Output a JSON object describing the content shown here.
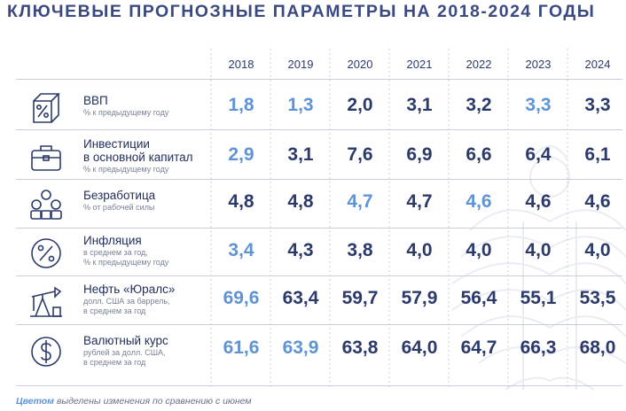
{
  "title": "КЛЮЧЕВЫЕ ПРОГНОЗНЫЕ ПАРАМЕТРЫ НА 2018-2024 ГОДЫ",
  "colors": {
    "primary": "#2b3a6b",
    "highlight": "#5f93d4",
    "muted": "#7a8096"
  },
  "years": [
    "2018",
    "2019",
    "2020",
    "2021",
    "2022",
    "2023",
    "2024"
  ],
  "rows": [
    {
      "icon": "percent-box-icon",
      "name": [
        "ВВП"
      ],
      "sub": [
        "% к предыдущему году"
      ],
      "values": [
        "1,8",
        "1,3",
        "2,0",
        "3,1",
        "3,2",
        "3,3",
        "3,3"
      ],
      "highlight": [
        true,
        true,
        false,
        false,
        false,
        true,
        false
      ]
    },
    {
      "icon": "briefcase-icon",
      "name": [
        "Инвестиции",
        "в основной капитал"
      ],
      "sub": [
        "% к предыдущему году"
      ],
      "values": [
        "2,9",
        "3,1",
        "7,6",
        "6,9",
        "6,6",
        "6,4",
        "6,1"
      ],
      "highlight": [
        true,
        false,
        false,
        false,
        false,
        false,
        false
      ]
    },
    {
      "icon": "people-icon",
      "name": [
        "Безработица"
      ],
      "sub": [
        "% от рабочей силы"
      ],
      "values": [
        "4,8",
        "4,8",
        "4,7",
        "4,7",
        "4,6",
        "4,6",
        "4,6"
      ],
      "highlight": [
        false,
        false,
        true,
        false,
        true,
        false,
        false
      ]
    },
    {
      "icon": "percent-circle-icon",
      "name": [
        "Инфляция"
      ],
      "sub": [
        "в среднем за год,",
        "% к предыдущему году"
      ],
      "values": [
        "3,4",
        "4,3",
        "3,8",
        "4,0",
        "4,0",
        "4,0",
        "4,0"
      ],
      "highlight": [
        true,
        false,
        false,
        false,
        false,
        false,
        false
      ]
    },
    {
      "icon": "oil-pump-icon",
      "name": [
        "Нефть «Юралс»"
      ],
      "sub": [
        "долл. США за баррель,",
        "в среднем за год"
      ],
      "values": [
        "69,6",
        "63,4",
        "59,7",
        "57,9",
        "56,4",
        "55,1",
        "53,5"
      ],
      "highlight": [
        true,
        false,
        false,
        false,
        false,
        false,
        false
      ]
    },
    {
      "icon": "dollar-coin-icon",
      "name": [
        "Валютный курс"
      ],
      "sub": [
        "рублей за долл. США,",
        "в среднем за год"
      ],
      "values": [
        "61,6",
        "63,9",
        "63,8",
        "64,0",
        "64,7",
        "66,3",
        "68,0"
      ],
      "highlight": [
        true,
        true,
        false,
        false,
        false,
        false,
        false
      ]
    }
  ],
  "footnote": {
    "accent": "Цветом",
    "text": " выделены изменения по сравнению с июнем"
  }
}
